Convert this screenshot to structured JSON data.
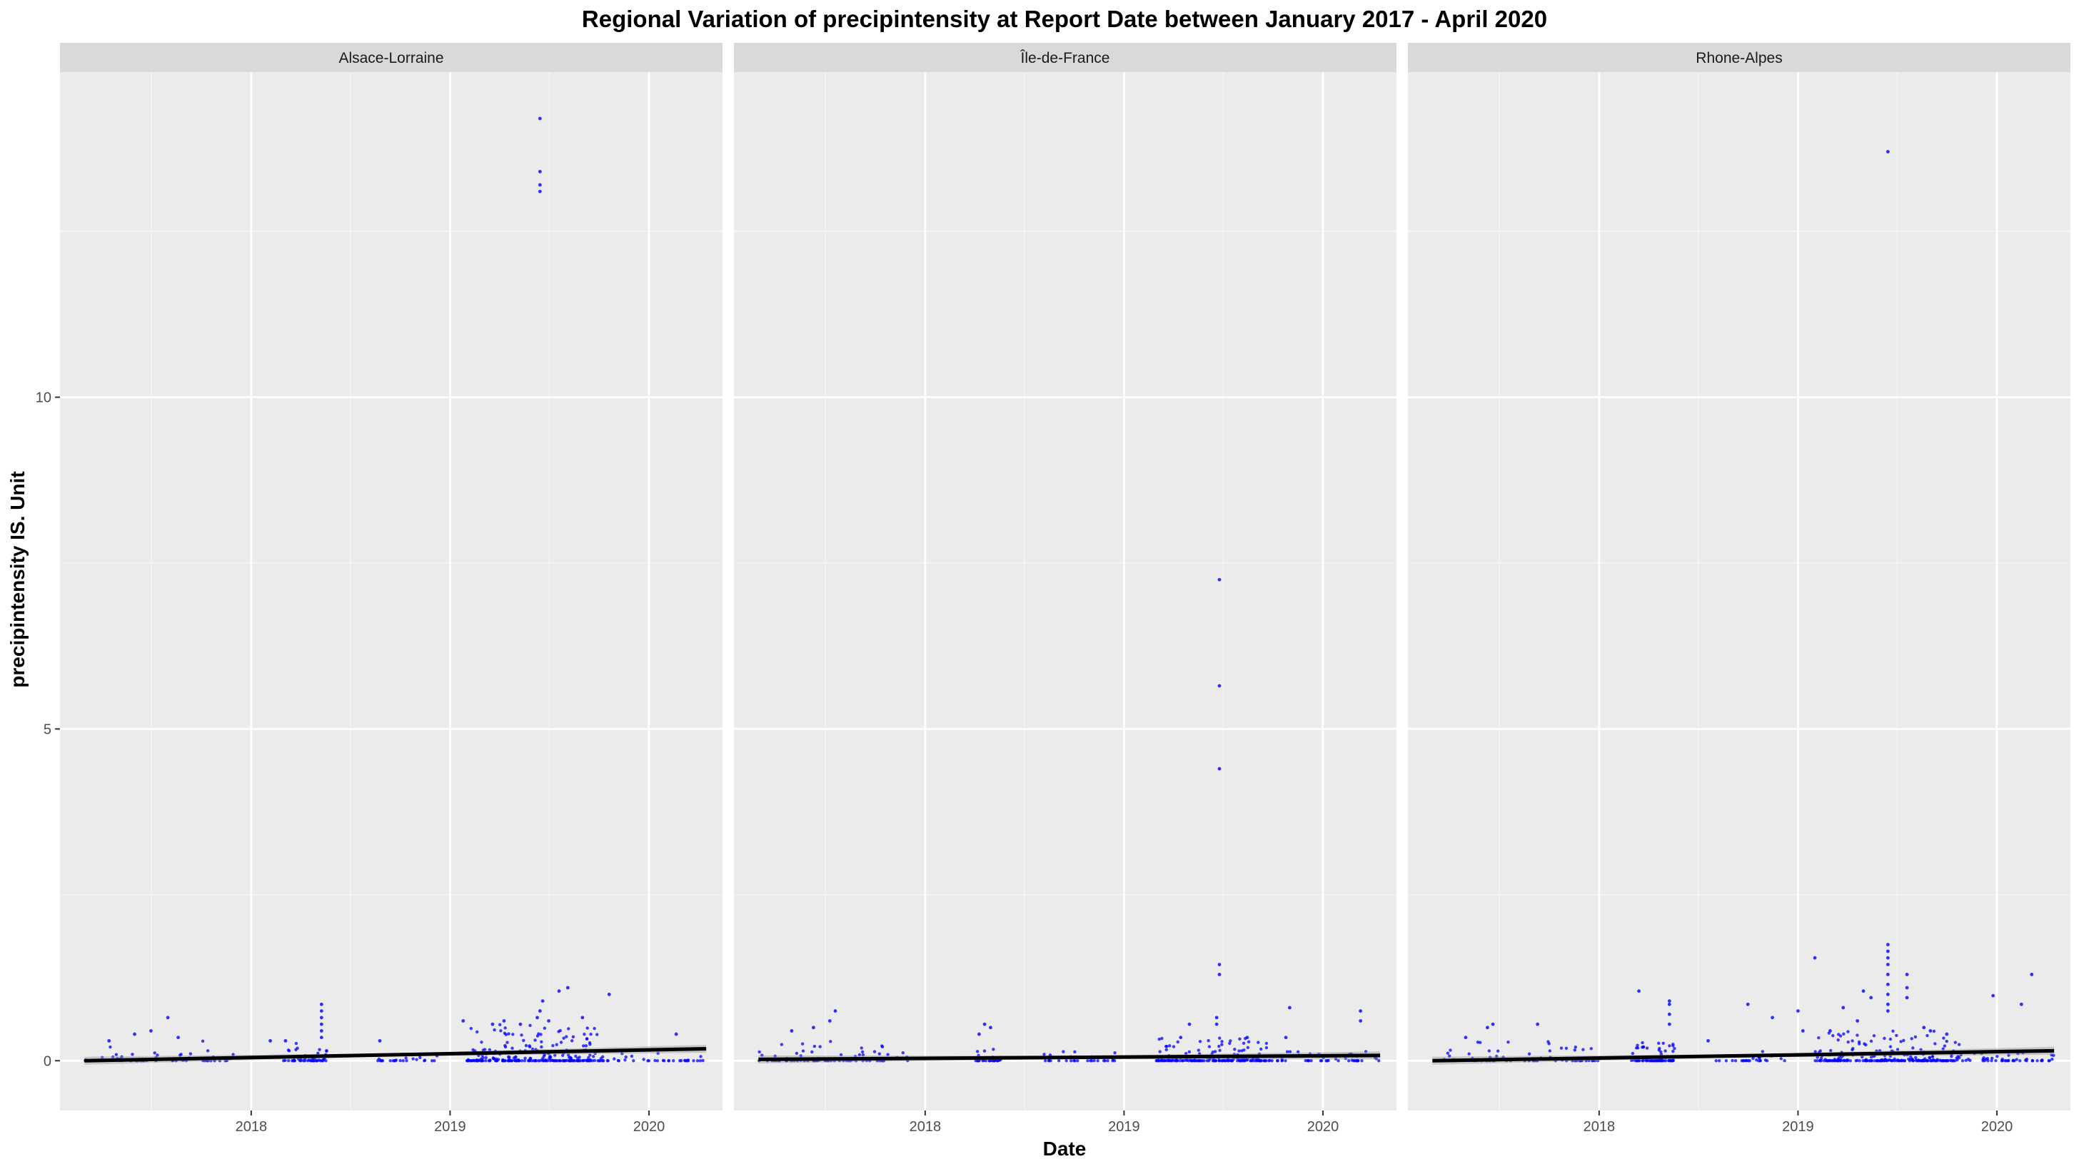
{
  "chart_data": {
    "type": "scatter",
    "title": "Regional Variation of  precipintensity  at Report Date between January 2017 - April 2020",
    "xlabel": "Date",
    "ylabel": "precipintensity  IS. Unit",
    "x_range": [
      "2017-01-15",
      "2020-05-15"
    ],
    "ylim": [
      -0.75,
      14.9
    ],
    "x_ticks": [
      "2018",
      "2019",
      "2020"
    ],
    "y_ticks": [
      "0",
      "5",
      "10"
    ],
    "grid": true,
    "legend": "none",
    "point_color": "#0000ff",
    "trend_color": "#000000",
    "panels": [
      {
        "name": "Alsace-Lorraine",
        "trend": [
          [
            "2017-03-01",
            0.0
          ],
          [
            "2020-04-15",
            0.18
          ]
        ],
        "clusters": [
          {
            "start": "2017-03-01",
            "end": "2017-11-30",
            "n": 60,
            "max": 0.3
          },
          {
            "start": "2018-03-01",
            "end": "2018-05-20",
            "n": 55,
            "max": 0.3
          },
          {
            "start": "2018-08-20",
            "end": "2018-12-10",
            "n": 25,
            "max": 0.15
          },
          {
            "start": "2019-02-01",
            "end": "2019-09-30",
            "n": 240,
            "max": 0.55
          },
          {
            "start": "2019-10-01",
            "end": "2020-04-15",
            "n": 40,
            "max": 0.15
          }
        ],
        "points": [
          [
            "2019-06-15",
            14.2
          ],
          [
            "2019-06-15",
            13.4
          ],
          [
            "2019-06-15",
            13.2
          ],
          [
            "2019-06-15",
            13.1
          ],
          [
            "2019-06-20",
            0.9
          ],
          [
            "2019-06-15",
            0.75
          ],
          [
            "2019-06-10",
            0.65
          ],
          [
            "2019-07-20",
            1.05
          ],
          [
            "2019-08-05",
            1.1
          ],
          [
            "2019-10-20",
            1.0
          ],
          [
            "2019-04-10",
            0.6
          ],
          [
            "2019-05-10",
            0.55
          ],
          [
            "2019-03-20",
            0.55
          ],
          [
            "2019-01-25",
            0.6
          ],
          [
            "2018-05-10",
            0.85
          ],
          [
            "2018-05-10",
            0.75
          ],
          [
            "2018-05-10",
            0.65
          ],
          [
            "2018-05-10",
            0.55
          ],
          [
            "2018-05-10",
            0.45
          ],
          [
            "2018-05-10",
            0.35
          ],
          [
            "2017-08-01",
            0.65
          ],
          [
            "2017-07-01",
            0.45
          ],
          [
            "2017-06-01",
            0.4
          ],
          [
            "2017-08-20",
            0.35
          ],
          [
            "2018-03-05",
            0.3
          ],
          [
            "2018-08-25",
            0.3
          ],
          [
            "2017-04-15",
            0.3
          ],
          [
            "2018-02-05",
            0.3
          ],
          [
            "2020-02-20",
            0.4
          ],
          [
            "2019-09-01",
            0.65
          ],
          [
            "2019-07-01",
            0.6
          ]
        ]
      },
      {
        "name": "Île-de-France",
        "trend": [
          [
            "2017-03-01",
            0.02
          ],
          [
            "2020-04-15",
            0.08
          ]
        ],
        "clusters": [
          {
            "start": "2017-03-01",
            "end": "2017-11-30",
            "n": 80,
            "max": 0.3
          },
          {
            "start": "2018-04-01",
            "end": "2018-05-20",
            "n": 35,
            "max": 0.2
          },
          {
            "start": "2018-08-01",
            "end": "2018-12-20",
            "n": 30,
            "max": 0.15
          },
          {
            "start": "2019-03-01",
            "end": "2019-09-30",
            "n": 180,
            "max": 0.35
          },
          {
            "start": "2019-10-01",
            "end": "2020-04-15",
            "n": 45,
            "max": 0.15
          }
        ],
        "points": [
          [
            "2019-06-25",
            7.25
          ],
          [
            "2019-06-25",
            5.65
          ],
          [
            "2019-06-25",
            4.4
          ],
          [
            "2019-06-25",
            1.45
          ],
          [
            "2019-06-25",
            1.3
          ],
          [
            "2019-06-20",
            0.65
          ],
          [
            "2019-06-20",
            0.55
          ],
          [
            "2019-05-01",
            0.55
          ],
          [
            "2019-11-01",
            0.8
          ],
          [
            "2020-03-10",
            0.75
          ],
          [
            "2020-03-10",
            0.6
          ],
          [
            "2017-07-20",
            0.75
          ],
          [
            "2017-07-10",
            0.6
          ],
          [
            "2017-06-10",
            0.5
          ],
          [
            "2018-04-20",
            0.55
          ],
          [
            "2018-05-01",
            0.5
          ],
          [
            "2018-04-10",
            0.4
          ],
          [
            "2017-05-01",
            0.45
          ],
          [
            "2019-04-15",
            0.35
          ],
          [
            "2019-08-15",
            0.35
          ],
          [
            "2019-10-25",
            0.35
          ]
        ]
      },
      {
        "name": "Rhone-Alpes",
        "trend": [
          [
            "2017-03-01",
            0.0
          ],
          [
            "2020-04-15",
            0.15
          ]
        ],
        "clusters": [
          {
            "start": "2017-03-01",
            "end": "2017-12-31",
            "n": 70,
            "max": 0.3
          },
          {
            "start": "2018-03-01",
            "end": "2018-05-20",
            "n": 70,
            "max": 0.3
          },
          {
            "start": "2018-08-01",
            "end": "2018-12-10",
            "n": 25,
            "max": 0.15
          },
          {
            "start": "2019-02-01",
            "end": "2019-10-31",
            "n": 230,
            "max": 0.45
          },
          {
            "start": "2019-11-01",
            "end": "2020-04-15",
            "n": 45,
            "max": 0.15
          }
        ],
        "points": [
          [
            "2019-06-15",
            13.7
          ],
          [
            "2019-06-15",
            1.75
          ],
          [
            "2019-06-15",
            1.65
          ],
          [
            "2019-06-15",
            1.55
          ],
          [
            "2019-06-15",
            1.45
          ],
          [
            "2019-06-15",
            1.3
          ],
          [
            "2019-06-15",
            1.15
          ],
          [
            "2019-06-15",
            1.0
          ],
          [
            "2019-06-15",
            0.85
          ],
          [
            "2019-06-15",
            0.75
          ],
          [
            "2019-05-01",
            1.05
          ],
          [
            "2019-05-15",
            0.95
          ],
          [
            "2019-07-20",
            1.3
          ],
          [
            "2019-07-20",
            1.1
          ],
          [
            "2019-07-20",
            0.95
          ],
          [
            "2019-03-25",
            0.8
          ],
          [
            "2019-02-01",
            1.55
          ],
          [
            "2019-12-25",
            0.98
          ],
          [
            "2020-03-05",
            1.3
          ],
          [
            "2020-02-15",
            0.85
          ],
          [
            "2018-03-15",
            1.05
          ],
          [
            "2018-05-10",
            0.9
          ],
          [
            "2018-05-10",
            0.85
          ],
          [
            "2018-05-10",
            0.7
          ],
          [
            "2018-05-10",
            0.55
          ],
          [
            "2018-10-01",
            0.85
          ],
          [
            "2018-11-15",
            0.65
          ],
          [
            "2019-01-01",
            0.75
          ],
          [
            "2019-01-10",
            0.45
          ],
          [
            "2017-06-20",
            0.55
          ],
          [
            "2017-06-10",
            0.5
          ],
          [
            "2017-09-10",
            0.55
          ],
          [
            "2017-05-01",
            0.35
          ],
          [
            "2018-07-20",
            0.3
          ],
          [
            "2019-09-01",
            0.45
          ],
          [
            "2019-10-01",
            0.4
          ],
          [
            "2019-04-20",
            0.6
          ],
          [
            "2019-08-20",
            0.5
          ],
          [
            "2019-03-01",
            0.45
          ]
        ]
      }
    ]
  }
}
